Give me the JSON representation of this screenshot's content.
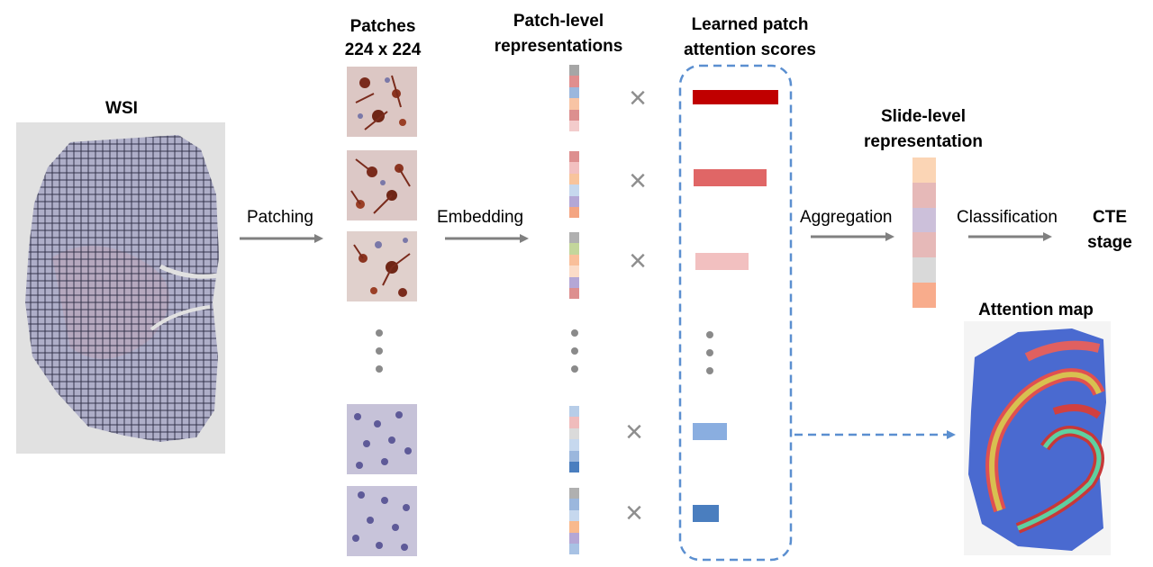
{
  "headers": {
    "wsi": "WSI",
    "patches_line1": "Patches",
    "patches_line2": "224 x 224",
    "patch_repr_line1": "Patch-level",
    "patch_repr_line2": "representations",
    "attn_line1": "Learned patch",
    "attn_line2": "attention scores",
    "slide_repr_line1": "Slide-level",
    "slide_repr_line2": "representation",
    "cte_line1": "CTE",
    "cte_line2": "stage",
    "attention_map": "Attention map"
  },
  "steps": {
    "patching": "Patching",
    "embedding": "Embedding",
    "aggregation": "Aggregation",
    "classification": "Classification"
  },
  "multiply_symbol": "×",
  "colors": {
    "arrow": "#808080",
    "dashed": "#5b8fd0",
    "attention_dark_red": "#c00000",
    "attention_red": "#e06666",
    "attention_pink": "#f2c0c0",
    "attention_light_blue": "#8aaee0",
    "attention_blue": "#4a7ebf"
  },
  "attention_scores": [
    1.0,
    0.85,
    0.62,
    0.4,
    0.3
  ],
  "patch_vectors": [
    [
      "#a6a6a6",
      "#e08e8e",
      "#9bb7dd",
      "#f8c4a4",
      "#dc8f8f",
      "#f3cccc"
    ],
    [
      "#dd8f8f",
      "#f2c0c0",
      "#f8c49c",
      "#c6d8ee",
      "#b4a7d6",
      "#f4a582"
    ],
    [
      "#b0b0b0",
      "#c3d69b",
      "#f9bf9a",
      "#fbdcc8",
      "#b4a7d6",
      "#dd8f8f"
    ],
    [
      "#b7cde8",
      "#f0bcbc",
      "#dadada",
      "#c6d8ee",
      "#9bb7dd",
      "#4a7ebf"
    ],
    [
      "#b0b0b0",
      "#9bb7dd",
      "#c6d8ee",
      "#f8b98d",
      "#b4a7d6",
      "#a8c2e4"
    ]
  ],
  "slide_vector": [
    "#fbd5b5",
    "#e6b9b8",
    "#ccc0da",
    "#e6b9b8",
    "#d9d9d9",
    "#f8ac8c"
  ]
}
